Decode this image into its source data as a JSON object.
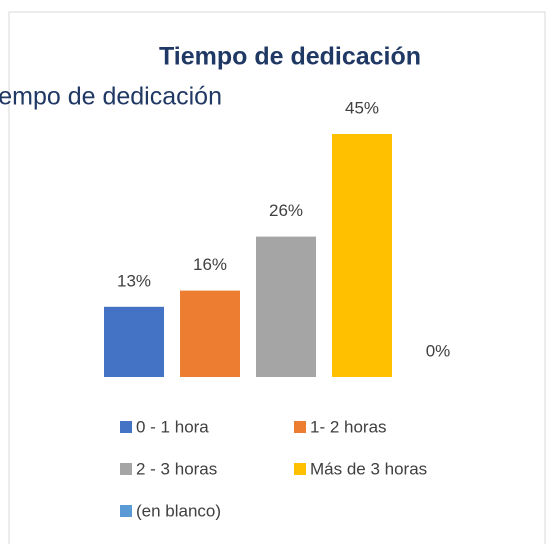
{
  "chart_data": {
    "type": "bar",
    "title": "Tiempo de dedicación",
    "background_title": "Tiempo de dedicación",
    "categories": [
      "0 - 1 hora",
      "1- 2 horas",
      "2 - 3 horas",
      "Más de 3 horas",
      "(en blanco)"
    ],
    "values": [
      13,
      16,
      26,
      45,
      0
    ],
    "value_labels": [
      "13%",
      "16%",
      "26%",
      "45%",
      "0%"
    ],
    "colors": [
      "#4472c4",
      "#ed7d31",
      "#a5a5a5",
      "#ffc000",
      "#5b9bd5"
    ],
    "legend": "bottom"
  }
}
